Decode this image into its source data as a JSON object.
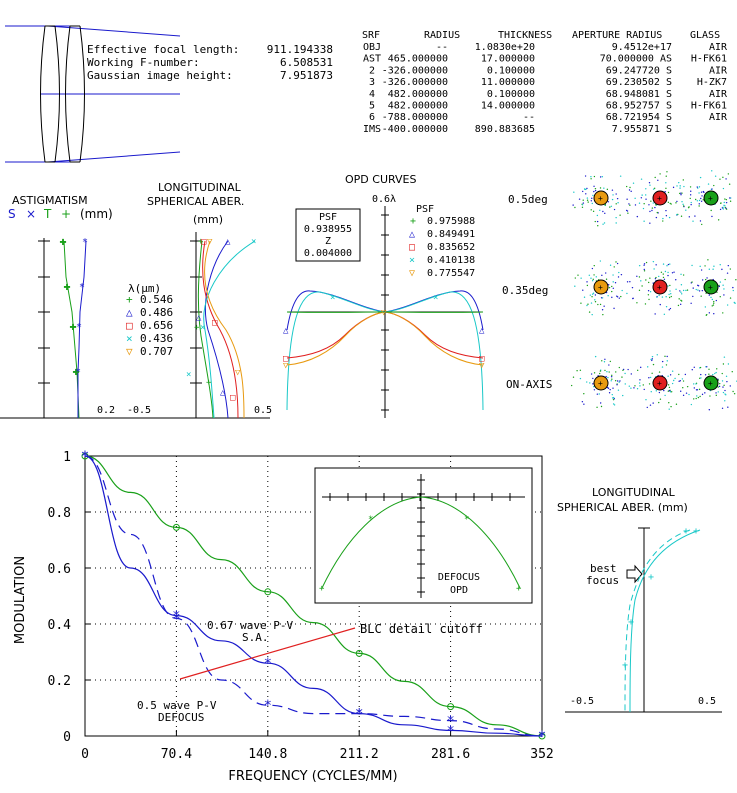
{
  "colors": {
    "green": "#19a019",
    "blue": "#1a1acc",
    "red": "#e02020",
    "cyan": "#19c8c8",
    "orange": "#e89a10",
    "black": "#000000"
  },
  "lens_info": {
    "efl_label": "Effective focal length:",
    "efl_value": "911.194338",
    "fnum_label": "Working F-number:",
    "fnum_value": "6.508531",
    "gih_label": "Gaussian image height:",
    "gih_value": "7.951873"
  },
  "prescription": {
    "headers": [
      "SRF",
      "RADIUS",
      "THICKNESS",
      "APERTURE RADIUS",
      "GLASS"
    ],
    "rows": [
      [
        "OBJ",
        "--",
        "1.0830e+20",
        "9.4512e+17",
        "AIR"
      ],
      [
        "AST",
        "465.000000",
        "17.000000",
        "70.000000 AS",
        "H-FK61"
      ],
      [
        "2",
        "-326.000000",
        "0.100000",
        "69.247720 S",
        "AIR"
      ],
      [
        "3",
        "-326.000000",
        "11.000000",
        "69.230502 S",
        "H-ZK7"
      ],
      [
        "4",
        "482.000000",
        "0.100000",
        "68.948081 S",
        "AIR"
      ],
      [
        "5",
        "482.000000",
        "14.000000",
        "68.952757 S",
        "H-FK61"
      ],
      [
        "6",
        "-788.000000",
        "--",
        "68.721954 S",
        "AIR"
      ],
      [
        "IMS",
        "-400.000000",
        "890.883685",
        "7.955871 S",
        ""
      ]
    ]
  },
  "astigmatism": {
    "title": "ASTIGMATISM",
    "legend_s": "S",
    "legend_x": "×",
    "legend_t": "T",
    "legend_plus": "+",
    "units": "(mm)",
    "tick_right": "0.2"
  },
  "long_sph": {
    "title1": "LONGITUDINAL",
    "title2": "SPHERICAL ABER.",
    "units": "(mm)",
    "tick_left": "-0.5",
    "tick_right": "0.5"
  },
  "wavelengths": {
    "header": "λ(μm)",
    "items": [
      "0.546",
      "0.486",
      "0.656",
      "0.436",
      "0.707"
    ]
  },
  "opd": {
    "title": "OPD CURVES",
    "scale": "0.6λ",
    "psf_box": [
      "PSF",
      "0.938955",
      "Z",
      "0.004000"
    ],
    "psf_header": "PSF",
    "psf_values": [
      "0.975988",
      "0.849491",
      "0.835652",
      "0.410138",
      "0.775547"
    ]
  },
  "spots": {
    "rows": [
      "0.5deg",
      "0.35deg",
      "ON-AXIS"
    ]
  },
  "mtf": {
    "ylabel": "MODULATION",
    "xlabel": "FREQUENCY (CYCLES/MM)",
    "yticks": [
      "1",
      "0.8",
      "0.6",
      "0.4",
      "0.2",
      "0"
    ],
    "xticks": [
      "0",
      "70.4",
      "140.8",
      "211.2",
      "281.6",
      "352"
    ],
    "annotations": {
      "sa1": "0.67 wave P-V",
      "sa2": "S.A.",
      "defocus1": "0.5 wave P-V",
      "defocus2": "DEFOCUS",
      "blc": "BLC detail cutoff"
    },
    "inset_label1": "DEFOCUS",
    "inset_label2": "OPD"
  },
  "long_sph2": {
    "title1": "LONGITUDINAL",
    "title2": "SPHERICAL ABER. (mm)",
    "best1": "best",
    "best2": "focus",
    "tick_left": "-0.5",
    "tick_right": "0.5"
  },
  "chart_data": [
    {
      "type": "line",
      "title": "",
      "xlabel": "FREQUENCY (CYCLES/MM)",
      "ylabel": "MODULATION",
      "xlim": [
        0,
        352
      ],
      "ylim": [
        0,
        1
      ],
      "x": [
        0,
        35,
        70.4,
        105,
        140.8,
        176,
        211.2,
        246,
        281.6,
        317,
        352
      ],
      "series": [
        {
          "name": "",
          "values": [
            1,
            0.87,
            0.745,
            0.63,
            0.515,
            0.405,
            0.295,
            0.195,
            0.105,
            0.04,
            0
          ]
        },
        {
          "name": "",
          "values": [
            1,
            0.6,
            0.43,
            0.34,
            0.26,
            0.17,
            0.08,
            0.04,
            0.02,
            0.01,
            0
          ]
        },
        {
          "name": "",
          "values": [
            1,
            0.72,
            0.42,
            0.2,
            0.11,
            0.08,
            0.08,
            0.07,
            0.055,
            0.025,
            0
          ]
        }
      ]
    }
  ]
}
